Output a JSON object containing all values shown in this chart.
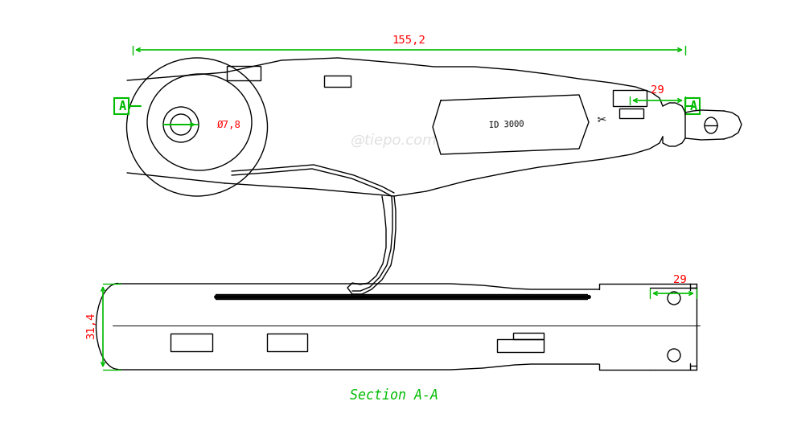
{
  "bg_color": "#ffffff",
  "line_color": "#000000",
  "dim_color": "#ff0000",
  "section_color": "#00bb00",
  "watermark": "@tiepo.com",
  "dim_155": "155,2",
  "dim_29_top": "29",
  "dim_29_bottom": "29",
  "dim_31": "31,4",
  "dim_phi": "Ø7,8",
  "id_text": "ID 3000",
  "section_label": "Section A-A",
  "A_label": "A"
}
